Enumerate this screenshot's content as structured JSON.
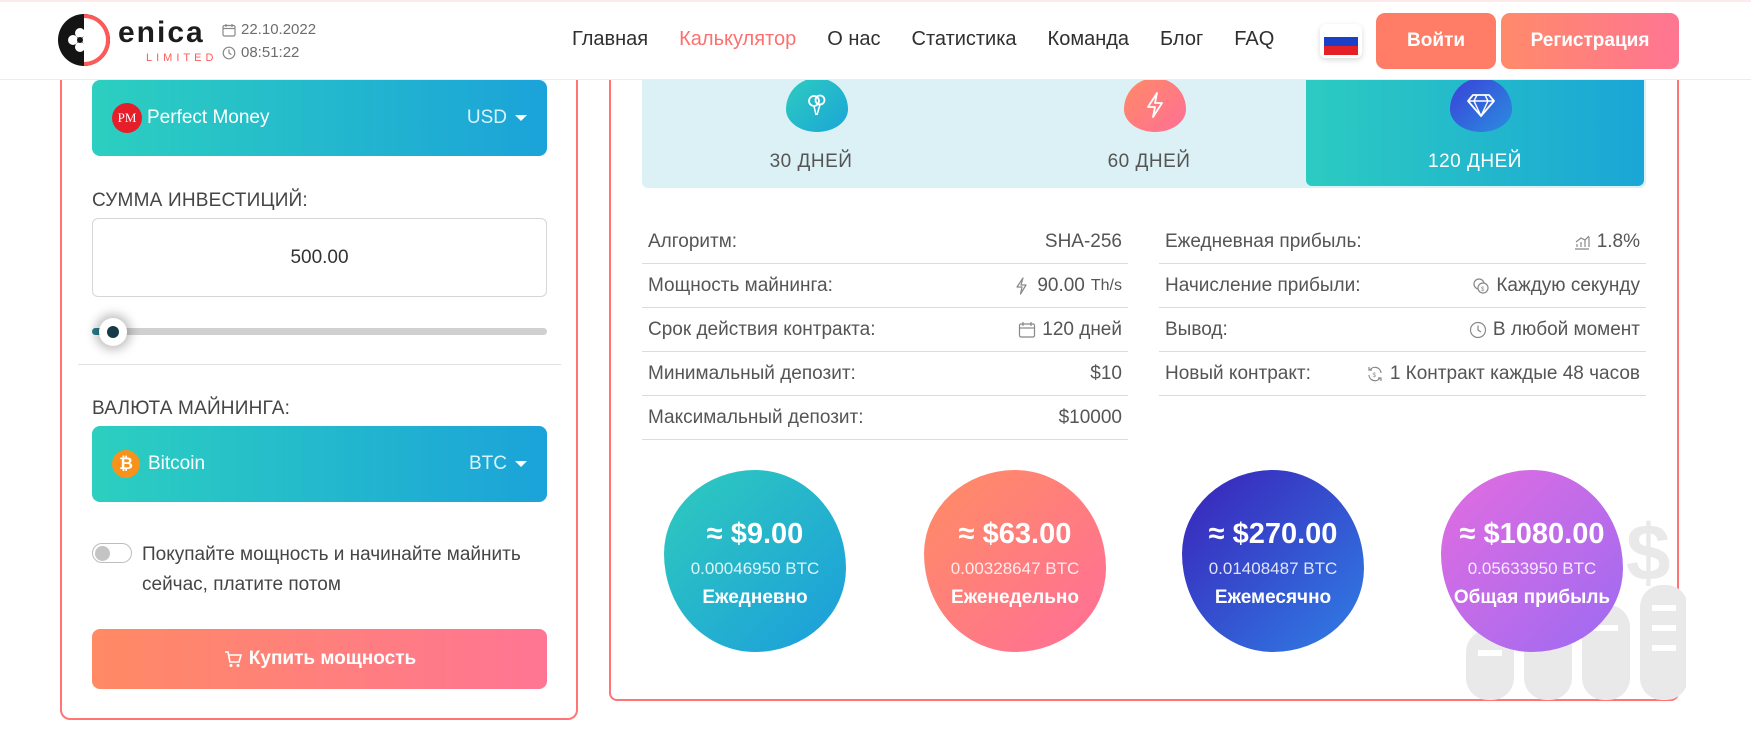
{
  "header": {
    "logo_text": "enica",
    "logo_sub": "LIMITED",
    "date": "22.10.2022",
    "time": "08:51:22",
    "nav": [
      {
        "label": "Главная",
        "active": false
      },
      {
        "label": "Калькулятор",
        "active": true
      },
      {
        "label": "О нас",
        "active": false
      },
      {
        "label": "Статистика",
        "active": false
      },
      {
        "label": "Команда",
        "active": false
      },
      {
        "label": "Блог",
        "active": false
      },
      {
        "label": "FAQ",
        "active": false
      }
    ],
    "login_label": "Войти",
    "register_label": "Регистрация"
  },
  "calculator": {
    "payment": {
      "name": "Perfect Money",
      "currency": "USD",
      "icon": "PM"
    },
    "amount_label": "СУММА ИНВЕСТИЦИЙ:",
    "amount_value": "500.00",
    "slider_level": 0.05,
    "mining_label": "ВАЛЮТА МАЙНИНГА:",
    "mining": {
      "name": "Bitcoin",
      "currency": "BTC",
      "icon": "₿"
    },
    "toggle_text": "Покупайте мощность и начинайте майнить сейчас, платите потом",
    "buy_label": "Купить мощность"
  },
  "plans": [
    {
      "label": "30 ДНЕЙ",
      "icon": "balloon-icon",
      "selected": false
    },
    {
      "label": "60 ДНЕЙ",
      "icon": "lightning-icon",
      "selected": false
    },
    {
      "label": "120 ДНЕЙ",
      "icon": "diamond-icon",
      "selected": true
    }
  ],
  "specs_left": [
    {
      "label": "Алгоритм:",
      "value": "SHA-256",
      "icon": ""
    },
    {
      "label": "Мощность майнинга:",
      "value": "90.00",
      "unit": "Th/s",
      "icon": "lightning-icon"
    },
    {
      "label": "Срок действия контракта:",
      "value": "120 дней",
      "icon": "calendar-icon"
    },
    {
      "label": "Минимальный депозит:",
      "value": "$10",
      "icon": ""
    },
    {
      "label": "Максимальный депозит:",
      "value": "$10000",
      "icon": ""
    }
  ],
  "specs_right": [
    {
      "label": "Ежедневная прибыль:",
      "value": "1.8%",
      "icon": "chart-icon"
    },
    {
      "label": "Начисление прибыли:",
      "value": "Каждую секунду",
      "icon": "coins-icon"
    },
    {
      "label": "Вывод:",
      "value": "В любой момент",
      "icon": "clock-icon"
    },
    {
      "label": "Новый контракт:",
      "value": "1 Контракт каждые 48 часов",
      "icon": "refresh-icon"
    }
  ],
  "profits": [
    {
      "usd": "≈ $9.00",
      "btc": "0.00046950 BTC",
      "period": "Ежедневно"
    },
    {
      "usd": "≈ $63.00",
      "btc": "0.00328647 BTC",
      "period": "Еженедельно"
    },
    {
      "usd": "≈ $270.00",
      "btc": "0.01408487 BTC",
      "period": "Ежемесячно"
    },
    {
      "usd": "≈ $1080.00",
      "btc": "0.05633950 BTC",
      "period": "Общая прибыль"
    }
  ],
  "colors": {
    "accent": "#ff6f6f",
    "teal": "#2ccfc0",
    "blue": "#1ba3d9",
    "coral": "#ff7d67",
    "pink": "#ff7592"
  }
}
